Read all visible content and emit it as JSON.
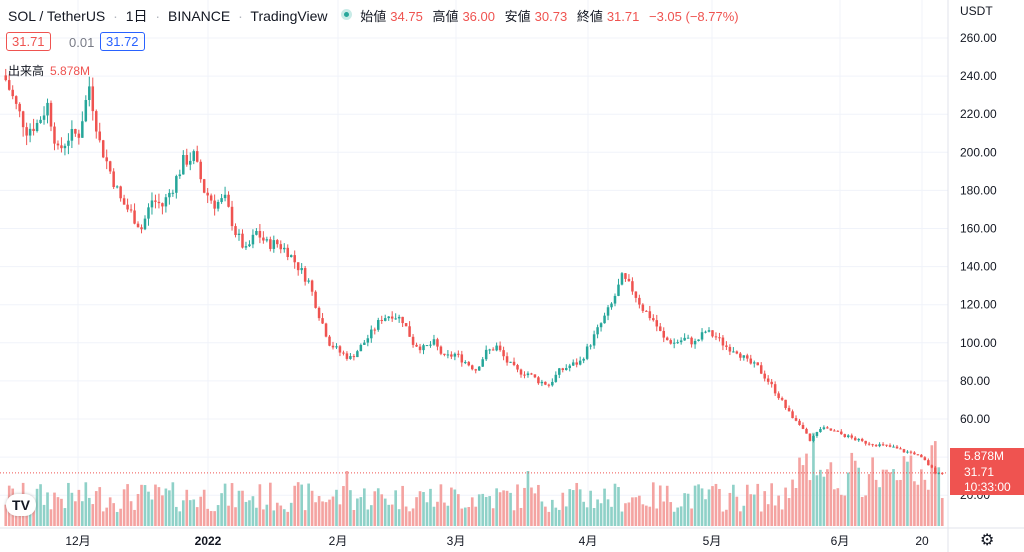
{
  "header": {
    "symbol": "SOL / TetherUS",
    "interval": "1日",
    "exchange": "BINANCE",
    "provider": "TradingView",
    "open_label": "始値",
    "open": "34.75",
    "high_label": "高値",
    "high": "36.00",
    "low_label": "安値",
    "low": "30.73",
    "close_label": "終値",
    "close": "31.71",
    "change": "−3.05 (−8.77%)"
  },
  "quote": {
    "bid": "31.71",
    "spread": "0.01",
    "ask": "31.72"
  },
  "volume_label": "出来高",
  "volume_value": "5.878M",
  "currency_label": "USDT",
  "price_tags": {
    "volume": "5.878M",
    "price": "31.71",
    "countdown": "10:33:00"
  },
  "colors": {
    "up": "#26a69a",
    "down": "#ef5350",
    "up_vol": "#8fd1c8",
    "down_vol": "#f4a3a1"
  },
  "icons": {
    "logo": "tradingview-logo-icon",
    "settings": "gear-icon",
    "status": "market-open-dot-icon"
  },
  "chart_data": {
    "type": "candlestick",
    "y_ticks": [
      "260.00",
      "240.00",
      "220.00",
      "200.00",
      "180.00",
      "160.00",
      "140.00",
      "120.00",
      "100.00",
      "80.00",
      "60.00",
      "40.00",
      "20.00"
    ],
    "ylim": [
      20,
      260
    ],
    "x_ticks": [
      "12月",
      "2022",
      "2月",
      "3月",
      "4月",
      "5月",
      "6月",
      "20"
    ],
    "grid": true,
    "close_anchors": [
      [
        0,
        238
      ],
      [
        3,
        224
      ],
      [
        6,
        212
      ],
      [
        9,
        215
      ],
      [
        12,
        225
      ],
      [
        15,
        200
      ],
      [
        18,
        208
      ],
      [
        21,
        210
      ],
      [
        24,
        235
      ],
      [
        27,
        205
      ],
      [
        30,
        190
      ],
      [
        33,
        175
      ],
      [
        36,
        168
      ],
      [
        39,
        160
      ],
      [
        42,
        175
      ],
      [
        45,
        172
      ],
      [
        48,
        182
      ],
      [
        51,
        195
      ],
      [
        54,
        198
      ],
      [
        57,
        180
      ],
      [
        60,
        173
      ],
      [
        63,
        175
      ],
      [
        66,
        158
      ],
      [
        69,
        148
      ],
      [
        72,
        158
      ],
      [
        75,
        152
      ],
      [
        78,
        152
      ],
      [
        81,
        148
      ],
      [
        84,
        140
      ],
      [
        87,
        132
      ],
      [
        90,
        115
      ],
      [
        93,
        100
      ],
      [
        96,
        95
      ],
      [
        99,
        92
      ],
      [
        102,
        98
      ],
      [
        105,
        105
      ],
      [
        108,
        113
      ],
      [
        111,
        115
      ],
      [
        114,
        112
      ],
      [
        117,
        100
      ],
      [
        120,
        97
      ],
      [
        123,
        100
      ],
      [
        126,
        92
      ],
      [
        129,
        94
      ],
      [
        132,
        90
      ],
      [
        135,
        86
      ],
      [
        138,
        95
      ],
      [
        141,
        98
      ],
      [
        144,
        90
      ],
      [
        147,
        85
      ],
      [
        150,
        84
      ],
      [
        153,
        80
      ],
      [
        156,
        78
      ],
      [
        159,
        85
      ],
      [
        162,
        88
      ],
      [
        165,
        90
      ],
      [
        168,
        100
      ],
      [
        171,
        110
      ],
      [
        174,
        120
      ],
      [
        177,
        134
      ],
      [
        180,
        128
      ],
      [
        183,
        118
      ],
      [
        186,
        112
      ],
      [
        189,
        102
      ],
      [
        192,
        100
      ],
      [
        195,
        102
      ],
      [
        198,
        100
      ],
      [
        201,
        106
      ],
      [
        204,
        103
      ],
      [
        207,
        98
      ],
      [
        210,
        96
      ],
      [
        213,
        90
      ],
      [
        216,
        87
      ],
      [
        219,
        80
      ],
      [
        222,
        72
      ],
      [
        225,
        63
      ],
      [
        228,
        58
      ],
      [
        231,
        48
      ],
      [
        234,
        55
      ],
      [
        237,
        54
      ],
      [
        240,
        52
      ],
      [
        243,
        50
      ],
      [
        246,
        48
      ],
      [
        249,
        47
      ],
      [
        252,
        46
      ],
      [
        255,
        45
      ],
      [
        258,
        43
      ],
      [
        261,
        42
      ],
      [
        264,
        38
      ],
      [
        267,
        32
      ],
      [
        269,
        31.71
      ]
    ],
    "volume_scale_max": 60
  }
}
